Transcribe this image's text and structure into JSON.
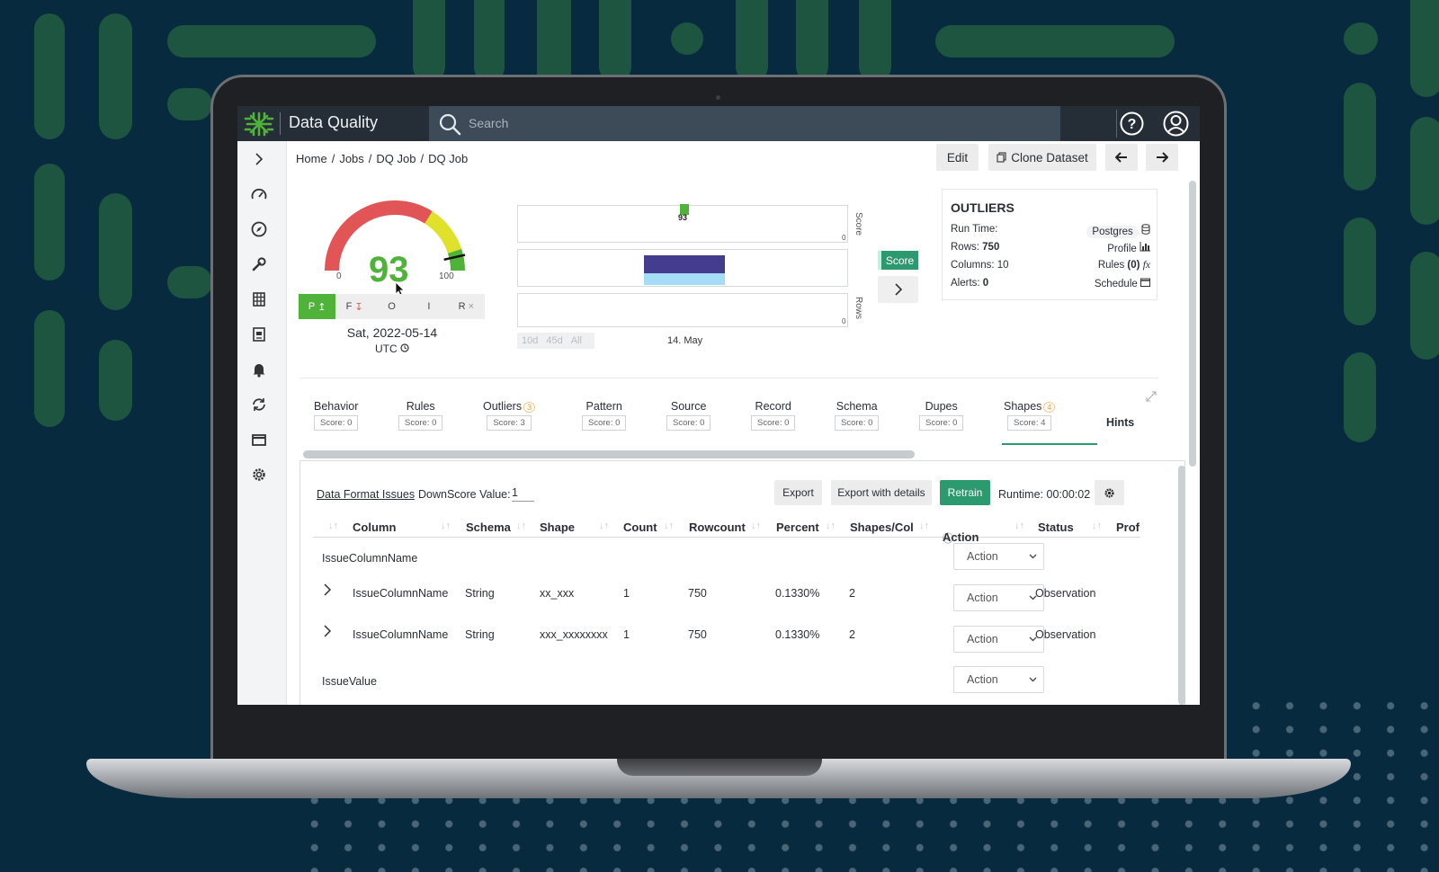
{
  "header": {
    "app_title": "Data Quality",
    "search_placeholder": "Search"
  },
  "breadcrumb": [
    "Home",
    "/",
    "Jobs",
    "/",
    "DQ Job",
    "/",
    "DQ Job"
  ],
  "toolbar": {
    "edit_label": "Edit",
    "clone_label": "Clone Dataset"
  },
  "gauge": {
    "score": "93",
    "min_label": "0",
    "max_label": "100",
    "value": 93,
    "date": "Sat, 2022-05-14",
    "timezone": "UTC",
    "filters": [
      {
        "label": "P",
        "arrow": "↥"
      },
      {
        "label": "F",
        "arrow": "↧"
      },
      {
        "label": "O",
        "arrow": ""
      },
      {
        "label": "I",
        "arrow": ""
      },
      {
        "label": "R",
        "arrow": "×"
      }
    ],
    "colors": {
      "red": "#e25557",
      "yellow": "#dfe12a",
      "green": "#4fb33a"
    }
  },
  "timeline": {
    "score_label": "Score",
    "rows_label": "Rows",
    "score_value": "93",
    "zero_label": "0",
    "date_label": "14. May",
    "ranges": [
      "10d",
      "45d",
      "All"
    ],
    "score_button": "Score",
    "colors": {
      "rows_bar_top": "#433c8f",
      "rows_bar_bottom": "#a5dcf8"
    }
  },
  "outliers": {
    "title": "OUTLIERS",
    "left": [
      {
        "label": "Run Time:",
        "value": ""
      },
      {
        "label": "Rows:",
        "value": "750"
      },
      {
        "label": "Columns:",
        "value": "10"
      },
      {
        "label": "Alerts:",
        "value": "0"
      }
    ],
    "right": [
      {
        "label": "Postgres",
        "icon": "database-icon"
      },
      {
        "label": "Profile",
        "icon": "bar-chart-icon"
      },
      {
        "label": "Rules",
        "count": "(0)",
        "icon": "fx-icon"
      },
      {
        "label": "Schedule",
        "icon": "calendar-icon"
      }
    ]
  },
  "tabs": [
    {
      "label": "Behavior",
      "score": "Score: 0",
      "badge": ""
    },
    {
      "label": "Rules",
      "score": "Score: 0",
      "badge": ""
    },
    {
      "label": "Outliers",
      "score": "Score: 3",
      "badge": "3"
    },
    {
      "label": "Pattern",
      "score": "Score: 0",
      "badge": ""
    },
    {
      "label": "Source",
      "score": "Score: 0",
      "badge": ""
    },
    {
      "label": "Record",
      "score": "Score: 0",
      "badge": ""
    },
    {
      "label": "Schema",
      "score": "Score: 0",
      "badge": ""
    },
    {
      "label": "Dupes",
      "score": "Score: 0",
      "badge": ""
    },
    {
      "label": "Shapes",
      "score": "Score: 4",
      "badge": "4"
    },
    {
      "label": "Hints",
      "score": "",
      "badge": ""
    }
  ],
  "panel": {
    "issues_link": "Data Format Issues",
    "downscore_label": "DownScore Value:",
    "downscore_value": "1",
    "export_label": "Export",
    "export_details_label": "Export with details",
    "retrain_label": "Retrain",
    "runtime": "Runtime: 00:00:02"
  },
  "table": {
    "columns": [
      "Column",
      "Schema",
      "Shape",
      "Count",
      "Rowcount",
      "Percent",
      "Shapes/Col",
      "Action",
      "Status",
      "Prof"
    ],
    "group1": "IssueColumnName",
    "rows": [
      {
        "column": "IssueColumnName",
        "schema": "String",
        "shape": "xx_xxx",
        "count": "1",
        "rowcount": "750",
        "percent": "0.1330%",
        "shapes": "2",
        "status": "Observation"
      },
      {
        "column": "IssueColumnName",
        "schema": "String",
        "shape": "xxx_xxxxxxxx",
        "count": "1",
        "rowcount": "750",
        "percent": "0.1330%",
        "shapes": "2",
        "status": "Observation"
      }
    ],
    "group2": "IssueValue",
    "action_placeholder": "Action"
  },
  "colors": {
    "accent": "#2c9a6e",
    "brand_green": "#4fb33a",
    "background": "#082a3e"
  }
}
